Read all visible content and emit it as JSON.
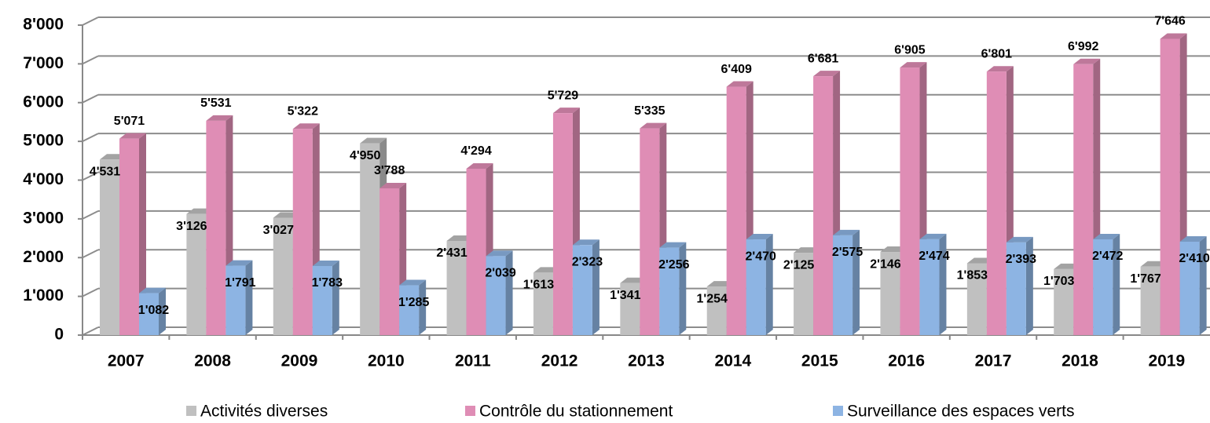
{
  "chart_data": {
    "type": "bar",
    "categories": [
      "2007",
      "2008",
      "2009",
      "2010",
      "2011",
      "2012",
      "2013",
      "2014",
      "2015",
      "2016",
      "2017",
      "2018",
      "2019"
    ],
    "series": [
      {
        "name": "Activités diverses",
        "color": "#c0c0c0",
        "values": [
          4531,
          3126,
          3027,
          4950,
          2431,
          1613,
          1341,
          1254,
          2125,
          2146,
          1853,
          1703,
          1767
        ],
        "value_labels": [
          "4'531",
          "3'126",
          "3'027",
          "4'950",
          "2'431",
          "1'613",
          "1'341",
          "1'254",
          "2'125",
          "2'146",
          "1'853",
          "1'703",
          "1'767"
        ]
      },
      {
        "name": "Contrôle du stationnement",
        "color": "#df8db5",
        "values": [
          5071,
          5531,
          5322,
          3788,
          4294,
          5729,
          5335,
          6409,
          6681,
          6905,
          6801,
          6992,
          7646
        ],
        "value_labels": [
          "5'071",
          "5'531",
          "5'322",
          "3'788",
          "4'294",
          "5'729",
          "5'335",
          "6'409",
          "6'681",
          "6'905",
          "6'801",
          "6'992",
          "7'646"
        ]
      },
      {
        "name": "Surveillance des espaces verts",
        "color": "#8db4e3",
        "values": [
          1082,
          1791,
          1783,
          1285,
          2039,
          2323,
          2256,
          2470,
          2575,
          2474,
          2393,
          2472,
          2410
        ],
        "value_labels": [
          "1'082",
          "1'791",
          "1'783",
          "1'285",
          "2'039",
          "2'323",
          "2'256",
          "2'470",
          "2'575",
          "2'474",
          "2'393",
          "2'472",
          "2'410"
        ]
      }
    ],
    "ylim": [
      0,
      8000
    ],
    "yticks": [
      0,
      {
        "value": 1000,
        "label": "1'000"
      },
      {
        "value": 2000,
        "label": "2'000"
      },
      {
        "value": 3000,
        "label": "3'000"
      },
      {
        "value": 4000,
        "label": "4'000"
      },
      {
        "value": 5000,
        "label": "5'000"
      },
      {
        "value": 6000,
        "label": "6'000"
      },
      {
        "value": 7000,
        "label": "7'000"
      },
      {
        "value": 8000,
        "label": "8'000"
      }
    ],
    "grid": true,
    "legend": "bottom"
  }
}
